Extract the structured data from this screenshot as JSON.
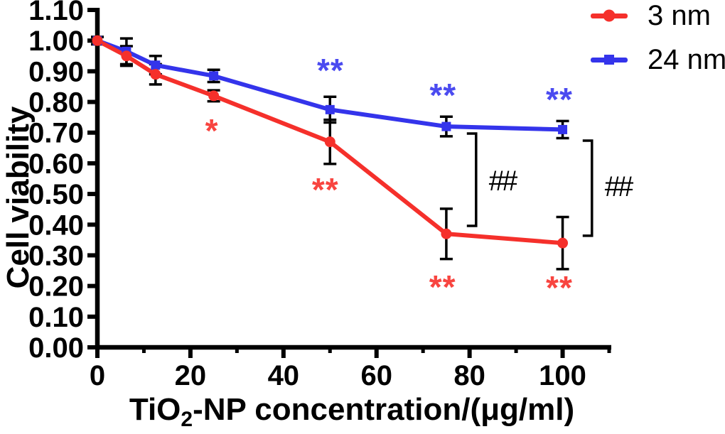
{
  "chart_data": {
    "type": "line",
    "title": "",
    "xlabel": "TiO2-NP concentration/(μg/ml)",
    "xlabel_parts": {
      "pre": "TiO",
      "sub": "2",
      "post": "-NP concentration/(μg/ml)"
    },
    "ylabel": "Cell viability",
    "xlim": [
      0,
      110
    ],
    "ylim": [
      0.0,
      1.1
    ],
    "grid": false,
    "x": [
      0,
      6.25,
      12.5,
      25,
      50,
      75,
      100
    ],
    "series": [
      {
        "name": "3 nm",
        "color": "#f5302b",
        "marker": "circle",
        "values": [
          1.0,
          0.95,
          0.89,
          0.82,
          0.67,
          0.37,
          0.34
        ],
        "errors": [
          0.012,
          0.032,
          0.033,
          0.018,
          0.072,
          0.082,
          0.085
        ]
      },
      {
        "name": "24 nm",
        "color": "#3434eb",
        "marker": "square",
        "values": [
          1.0,
          0.965,
          0.92,
          0.885,
          0.775,
          0.72,
          0.71
        ],
        "errors": [
          0.012,
          0.042,
          0.03,
          0.02,
          0.042,
          0.032,
          0.028
        ]
      }
    ],
    "x_major_ticks": [
      0,
      20,
      40,
      60,
      80,
      100
    ],
    "x_major_tick_labels": [
      "0",
      "20",
      "40",
      "60",
      "80",
      "100"
    ],
    "x_minor_ticks": [
      10,
      30,
      50,
      70,
      90,
      110
    ],
    "y_ticks": [
      0.0,
      0.1,
      0.2,
      0.3,
      0.4,
      0.5,
      0.6,
      0.7,
      0.8,
      0.9,
      1.0,
      1.1
    ],
    "y_tick_labels": [
      "0.00",
      "0.10",
      "0.20",
      "0.30",
      "0.40",
      "0.50",
      "0.60",
      "0.70",
      "0.80",
      "0.90",
      "1.00",
      "1.10"
    ],
    "legend": {
      "position": "top-right",
      "items": [
        {
          "label": "3 nm",
          "color": "#f5302b",
          "marker": "circle"
        },
        {
          "label": "24 nm",
          "color": "#3434eb",
          "marker": "square"
        }
      ]
    },
    "annotations": [
      {
        "text": "*",
        "color": "#f84540",
        "x": 24.6,
        "y": 0.722
      },
      {
        "text": "**",
        "color": "#f84540",
        "x": 49.0,
        "y": 0.53
      },
      {
        "text": "**",
        "color": "#f84540",
        "x": 74.2,
        "y": 0.213
      },
      {
        "text": "**",
        "color": "#f84540",
        "x": 99.3,
        "y": 0.211
      },
      {
        "text": "**",
        "color": "#4b4bf0",
        "x": 50.1,
        "y": 0.919
      },
      {
        "text": "**",
        "color": "#4b4bf0",
        "x": 74.3,
        "y": 0.838
      },
      {
        "text": "**",
        "color": "#4b4bf0",
        "x": 99.3,
        "y": 0.824
      }
    ],
    "significance_brackets": [
      {
        "label": "##",
        "x": 81.4,
        "y_top": 0.697,
        "y_bottom": 0.396,
        "label_y": 0.544
      },
      {
        "label": "##",
        "x": 106.3,
        "y_top": 0.674,
        "y_bottom": 0.364,
        "label_y": 0.526
      }
    ]
  },
  "colors": {
    "red_series": "#f5302b",
    "blue_series": "#3434eb",
    "error_bars": "#000000",
    "axes": "#000000",
    "background": "#ffffff"
  }
}
